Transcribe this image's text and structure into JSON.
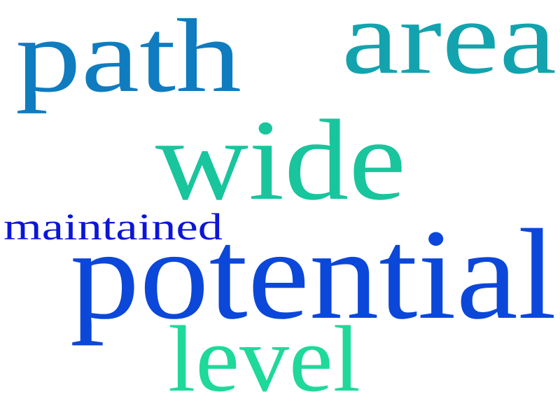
{
  "words": [
    {
      "text": "path",
      "color": "#0f7cc0"
    },
    {
      "text": "area",
      "color": "#13a3ae"
    },
    {
      "text": "wide",
      "color": "#19c59c"
    },
    {
      "text": "maintained",
      "color": "#0b16d6"
    },
    {
      "text": "potential",
      "color": "#0b47d9"
    },
    {
      "text": "level",
      "color": "#1ed99a"
    }
  ]
}
